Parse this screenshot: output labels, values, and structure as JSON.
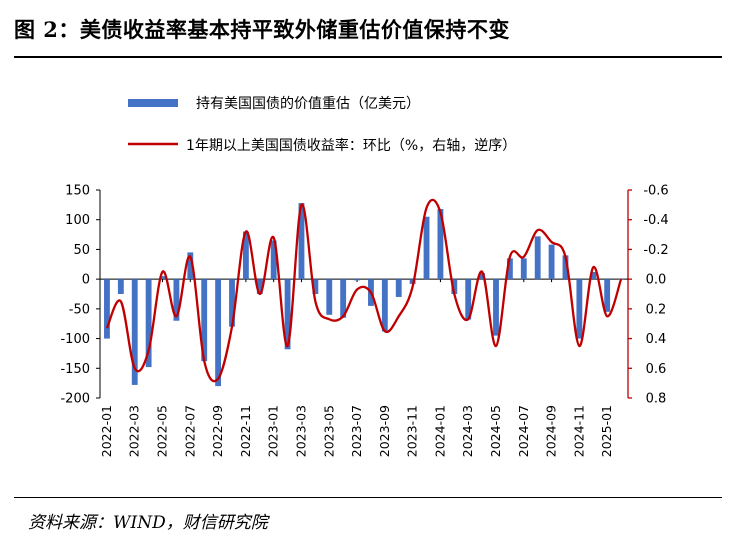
{
  "header": {
    "title": "图 2：美债收益率基本持平致外储重估价值保持不变"
  },
  "footer": {
    "source": "资料来源：WIND，财信研究院"
  },
  "chart_data": {
    "type": "bar+line",
    "legend": [
      {
        "name": "持有美国国债的价值重估（亿美元）",
        "kind": "bar",
        "color": "#4472C4"
      },
      {
        "name": "1年期以上美国国债收益率：环比（%，右轴，逆序）",
        "kind": "line",
        "color": "#C00000"
      }
    ],
    "x_ticks": [
      "2022-01",
      "2022-03",
      "2022-05",
      "2022-07",
      "2022-09",
      "2022-11",
      "2023-01",
      "2023-03",
      "2023-05",
      "2023-07",
      "2023-09",
      "2023-11",
      "2024-01",
      "2024-03",
      "2024-05",
      "2024-07",
      "2024-09",
      "2024-11",
      "2025-01"
    ],
    "y_left": {
      "ticks": [
        "150",
        "100",
        "50",
        "0",
        "-50",
        "-100",
        "-150",
        "-200"
      ],
      "range": [
        -200,
        150
      ]
    },
    "y_right": {
      "ticks": [
        "-0.6",
        "-0.4",
        "-0.2",
        "0.0",
        "0.2",
        "0.4",
        "0.6",
        "0.8"
      ],
      "range": [
        -0.6,
        0.8
      ],
      "inverted": true,
      "color": "#C00000"
    },
    "series": [
      {
        "name": "持有美国国债的价值重估（亿美元）",
        "type": "bar",
        "values": [
          -100,
          -25,
          -178,
          -148,
          5,
          -70,
          45,
          -138,
          -180,
          -80,
          80,
          -25,
          65,
          -118,
          128,
          -25,
          -60,
          -65,
          -2,
          -45,
          -88,
          -30,
          -8,
          105,
          118,
          -25,
          -68,
          10,
          -95,
          35,
          35,
          72,
          58,
          40,
          -100,
          12,
          -55,
          0
        ]
      },
      {
        "name": "1年期以上美国国债收益率：环比（%，右轴，逆序）",
        "type": "line",
        "values": [
          0.33,
          0.15,
          0.6,
          0.48,
          -0.05,
          0.25,
          -0.15,
          0.55,
          0.67,
          0.32,
          -0.32,
          0.1,
          -0.28,
          0.45,
          -0.5,
          0.15,
          0.27,
          0.25,
          0.07,
          0.09,
          0.35,
          0.25,
          0.05,
          -0.48,
          -0.45,
          0.1,
          0.27,
          -0.05,
          0.45,
          -0.15,
          -0.15,
          -0.33,
          -0.25,
          -0.15,
          0.45,
          -0.08,
          0.25,
          0.0
        ]
      }
    ]
  }
}
